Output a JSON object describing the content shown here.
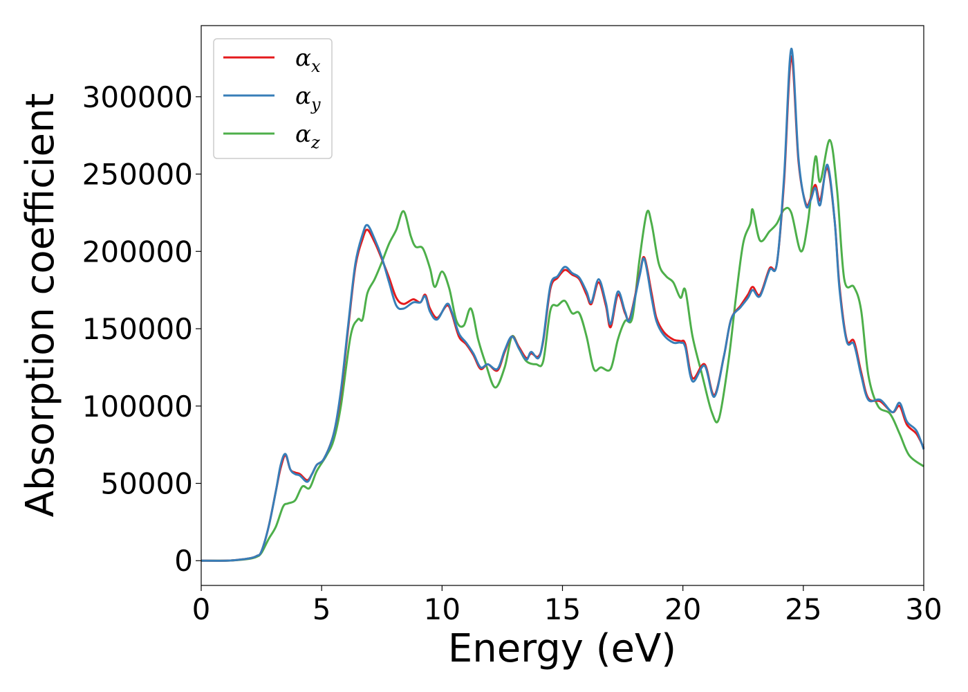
{
  "chart_data": {
    "type": "line",
    "xlabel": "Energy (eV)",
    "ylabel": "Absorption coefficient",
    "xlim": [
      0,
      30
    ],
    "ylim": [
      -16000,
      346000
    ],
    "xticks": [
      0,
      5,
      10,
      15,
      20,
      25,
      30
    ],
    "xtick_labels": [
      "0",
      "5",
      "10",
      "15",
      "20",
      "25",
      "30"
    ],
    "yticks": [
      0,
      50000,
      100000,
      150000,
      200000,
      250000,
      300000
    ],
    "ytick_labels": [
      "0",
      "50000",
      "100000",
      "150000",
      "200000",
      "250000",
      "300000"
    ],
    "grid": false,
    "legend_placement": "upper-left",
    "series": [
      {
        "name": "αx",
        "legend_base": "α",
        "legend_sub": "x",
        "color": "#e41a1c",
        "points": [
          [
            0,
            0
          ],
          [
            1,
            0
          ],
          [
            1.5,
            500
          ],
          [
            2,
            1500
          ],
          [
            2.3,
            3000
          ],
          [
            2.5,
            6000
          ],
          [
            2.8,
            22000
          ],
          [
            3.1,
            45000
          ],
          [
            3.3,
            60000
          ],
          [
            3.5,
            68000
          ],
          [
            3.7,
            59000
          ],
          [
            3.9,
            57000
          ],
          [
            4.1,
            56000
          ],
          [
            4.4,
            52000
          ],
          [
            4.6,
            56000
          ],
          [
            4.8,
            62000
          ],
          [
            5.1,
            66000
          ],
          [
            5.5,
            82000
          ],
          [
            5.8,
            108000
          ],
          [
            6.1,
            150000
          ],
          [
            6.4,
            190000
          ],
          [
            6.7,
            208000
          ],
          [
            6.9,
            214000
          ],
          [
            7.2,
            206000
          ],
          [
            7.5,
            195000
          ],
          [
            7.8,
            183000
          ],
          [
            8.1,
            170000
          ],
          [
            8.4,
            166000
          ],
          [
            8.8,
            169000
          ],
          [
            9.1,
            167000
          ],
          [
            9.3,
            172000
          ],
          [
            9.5,
            163000
          ],
          [
            9.8,
            157000
          ],
          [
            10.2,
            165000
          ],
          [
            10.4,
            160000
          ],
          [
            10.7,
            145000
          ],
          [
            11.0,
            140000
          ],
          [
            11.3,
            133000
          ],
          [
            11.6,
            124000
          ],
          [
            11.9,
            127000
          ],
          [
            12.3,
            123000
          ],
          [
            12.6,
            135000
          ],
          [
            12.9,
            145000
          ],
          [
            13.2,
            138000
          ],
          [
            13.5,
            131000
          ],
          [
            13.7,
            134000
          ],
          [
            14.0,
            132000
          ],
          [
            14.2,
            142000
          ],
          [
            14.5,
            176000
          ],
          [
            14.8,
            183000
          ],
          [
            15.1,
            188000
          ],
          [
            15.4,
            185000
          ],
          [
            15.7,
            182000
          ],
          [
            16.0,
            172000
          ],
          [
            16.2,
            166000
          ],
          [
            16.5,
            180000
          ],
          [
            16.8,
            165000
          ],
          [
            17.0,
            151000
          ],
          [
            17.3,
            172000
          ],
          [
            17.6,
            160000
          ],
          [
            17.8,
            157000
          ],
          [
            18.2,
            185000
          ],
          [
            18.4,
            196000
          ],
          [
            18.7,
            173000
          ],
          [
            18.9,
            157000
          ],
          [
            19.2,
            148000
          ],
          [
            19.6,
            143000
          ],
          [
            19.9,
            142000
          ],
          [
            20.1,
            140000
          ],
          [
            20.4,
            118000
          ],
          [
            20.9,
            127000
          ],
          [
            21.3,
            107000
          ],
          [
            21.7,
            132000
          ],
          [
            22.0,
            156000
          ],
          [
            22.4,
            165000
          ],
          [
            22.7,
            172000
          ],
          [
            22.9,
            177000
          ],
          [
            23.2,
            172000
          ],
          [
            23.6,
            189000
          ],
          [
            23.9,
            192000
          ],
          [
            24.2,
            245000
          ],
          [
            24.5,
            326000
          ],
          [
            24.8,
            258000
          ],
          [
            25.1,
            231000
          ],
          [
            25.3,
            234000
          ],
          [
            25.5,
            243000
          ],
          [
            25.7,
            233000
          ],
          [
            26.0,
            254000
          ],
          [
            26.3,
            220000
          ],
          [
            26.5,
            178000
          ],
          [
            26.8,
            143000
          ],
          [
            27.1,
            142000
          ],
          [
            27.4,
            122000
          ],
          [
            27.7,
            105000
          ],
          [
            28.2,
            103000
          ],
          [
            28.7,
            96000
          ],
          [
            29.0,
            100000
          ],
          [
            29.3,
            88000
          ],
          [
            29.7,
            82000
          ],
          [
            30,
            73000
          ]
        ]
      },
      {
        "name": "αy",
        "legend_base": "α",
        "legend_sub": "y",
        "color": "#377eb8",
        "points": [
          [
            0,
            0
          ],
          [
            1,
            0
          ],
          [
            1.5,
            500
          ],
          [
            2,
            1500
          ],
          [
            2.3,
            3000
          ],
          [
            2.5,
            6000
          ],
          [
            2.8,
            22000
          ],
          [
            3.1,
            45000
          ],
          [
            3.3,
            62000
          ],
          [
            3.5,
            69000
          ],
          [
            3.7,
            59000
          ],
          [
            3.9,
            56000
          ],
          [
            4.1,
            55000
          ],
          [
            4.4,
            51000
          ],
          [
            4.6,
            56000
          ],
          [
            4.8,
            62000
          ],
          [
            5.1,
            66000
          ],
          [
            5.5,
            82000
          ],
          [
            5.8,
            110000
          ],
          [
            6.1,
            152000
          ],
          [
            6.4,
            192000
          ],
          [
            6.7,
            211000
          ],
          [
            6.9,
            217000
          ],
          [
            7.2,
            208000
          ],
          [
            7.5,
            196000
          ],
          [
            7.8,
            180000
          ],
          [
            8.1,
            165000
          ],
          [
            8.4,
            163000
          ],
          [
            8.8,
            167000
          ],
          [
            9.1,
            167000
          ],
          [
            9.3,
            171000
          ],
          [
            9.5,
            161000
          ],
          [
            9.8,
            156000
          ],
          [
            10.2,
            166000
          ],
          [
            10.4,
            161000
          ],
          [
            10.7,
            147000
          ],
          [
            11.0,
            141000
          ],
          [
            11.3,
            134000
          ],
          [
            11.6,
            125000
          ],
          [
            11.9,
            127000
          ],
          [
            12.3,
            124000
          ],
          [
            12.6,
            136000
          ],
          [
            12.9,
            145000
          ],
          [
            13.2,
            137000
          ],
          [
            13.5,
            130000
          ],
          [
            13.7,
            135000
          ],
          [
            14.0,
            131000
          ],
          [
            14.2,
            143000
          ],
          [
            14.5,
            178000
          ],
          [
            14.8,
            184000
          ],
          [
            15.1,
            190000
          ],
          [
            15.4,
            186000
          ],
          [
            15.7,
            183000
          ],
          [
            16.0,
            174000
          ],
          [
            16.2,
            167000
          ],
          [
            16.5,
            182000
          ],
          [
            16.8,
            167000
          ],
          [
            17.0,
            153000
          ],
          [
            17.3,
            174000
          ],
          [
            17.6,
            161000
          ],
          [
            17.8,
            156000
          ],
          [
            18.2,
            184000
          ],
          [
            18.4,
            195000
          ],
          [
            18.7,
            170000
          ],
          [
            18.9,
            155000
          ],
          [
            19.2,
            146000
          ],
          [
            19.6,
            141000
          ],
          [
            19.9,
            141000
          ],
          [
            20.1,
            138000
          ],
          [
            20.4,
            116000
          ],
          [
            20.9,
            126000
          ],
          [
            21.3,
            106000
          ],
          [
            21.7,
            132000
          ],
          [
            22.0,
            156000
          ],
          [
            22.4,
            164000
          ],
          [
            22.7,
            170000
          ],
          [
            22.9,
            175000
          ],
          [
            23.2,
            171000
          ],
          [
            23.6,
            188000
          ],
          [
            23.9,
            192000
          ],
          [
            24.2,
            248000
          ],
          [
            24.5,
            331000
          ],
          [
            24.8,
            260000
          ],
          [
            25.1,
            230000
          ],
          [
            25.3,
            233000
          ],
          [
            25.5,
            241000
          ],
          [
            25.7,
            230000
          ],
          [
            26.0,
            256000
          ],
          [
            26.3,
            220000
          ],
          [
            26.5,
            176000
          ],
          [
            26.8,
            142000
          ],
          [
            27.1,
            140000
          ],
          [
            27.4,
            120000
          ],
          [
            27.7,
            104000
          ],
          [
            28.2,
            104000
          ],
          [
            28.7,
            96000
          ],
          [
            29.0,
            102000
          ],
          [
            29.3,
            90000
          ],
          [
            29.7,
            84000
          ],
          [
            30,
            72000
          ]
        ]
      },
      {
        "name": "αz",
        "legend_base": "α",
        "legend_sub": "z",
        "color": "#4daf4a",
        "points": [
          [
            0,
            0
          ],
          [
            1,
            0
          ],
          [
            1.5,
            400
          ],
          [
            2,
            1200
          ],
          [
            2.3,
            2500
          ],
          [
            2.5,
            5000
          ],
          [
            2.8,
            14000
          ],
          [
            3.1,
            22000
          ],
          [
            3.4,
            35000
          ],
          [
            3.6,
            37000
          ],
          [
            3.9,
            39000
          ],
          [
            4.2,
            48000
          ],
          [
            4.5,
            47000
          ],
          [
            4.8,
            58000
          ],
          [
            5.2,
            68000
          ],
          [
            5.5,
            78000
          ],
          [
            5.8,
            100000
          ],
          [
            6.2,
            145000
          ],
          [
            6.5,
            156000
          ],
          [
            6.7,
            156000
          ],
          [
            6.9,
            173000
          ],
          [
            7.2,
            182000
          ],
          [
            7.5,
            193000
          ],
          [
            7.8,
            205000
          ],
          [
            8.1,
            214000
          ],
          [
            8.4,
            226000
          ],
          [
            8.7,
            210000
          ],
          [
            8.9,
            203000
          ],
          [
            9.2,
            202000
          ],
          [
            9.5,
            189000
          ],
          [
            9.7,
            177000
          ],
          [
            10.0,
            187000
          ],
          [
            10.3,
            176000
          ],
          [
            10.6,
            155000
          ],
          [
            10.9,
            152000
          ],
          [
            11.2,
            163000
          ],
          [
            11.5,
            143000
          ],
          [
            11.8,
            128000
          ],
          [
            12.2,
            112000
          ],
          [
            12.6,
            125000
          ],
          [
            12.9,
            145000
          ],
          [
            13.2,
            137000
          ],
          [
            13.5,
            129000
          ],
          [
            13.9,
            127000
          ],
          [
            14.2,
            129000
          ],
          [
            14.5,
            162000
          ],
          [
            14.8,
            165000
          ],
          [
            15.1,
            168000
          ],
          [
            15.4,
            160000
          ],
          [
            15.7,
            160000
          ],
          [
            16.0,
            145000
          ],
          [
            16.3,
            124000
          ],
          [
            16.6,
            125000
          ],
          [
            17.0,
            124000
          ],
          [
            17.3,
            143000
          ],
          [
            17.6,
            155000
          ],
          [
            17.9,
            157000
          ],
          [
            18.2,
            195000
          ],
          [
            18.5,
            225000
          ],
          [
            18.7,
            218000
          ],
          [
            19.0,
            192000
          ],
          [
            19.3,
            184000
          ],
          [
            19.6,
            180000
          ],
          [
            19.9,
            170000
          ],
          [
            20.1,
            175000
          ],
          [
            20.4,
            145000
          ],
          [
            20.8,
            120000
          ],
          [
            21.2,
            96000
          ],
          [
            21.5,
            92000
          ],
          [
            21.9,
            130000
          ],
          [
            22.2,
            170000
          ],
          [
            22.5,
            205000
          ],
          [
            22.8,
            218000
          ],
          [
            22.9,
            227000
          ],
          [
            23.2,
            207000
          ],
          [
            23.6,
            213000
          ],
          [
            23.9,
            218000
          ],
          [
            24.2,
            227000
          ],
          [
            24.5,
            225000
          ],
          [
            24.9,
            200000
          ],
          [
            25.2,
            220000
          ],
          [
            25.5,
            261000
          ],
          [
            25.7,
            245000
          ],
          [
            26.1,
            272000
          ],
          [
            26.4,
            240000
          ],
          [
            26.7,
            182000
          ],
          [
            27.1,
            177000
          ],
          [
            27.4,
            162000
          ],
          [
            27.7,
            120000
          ],
          [
            28.1,
            100000
          ],
          [
            28.6,
            95000
          ],
          [
            29.0,
            82000
          ],
          [
            29.4,
            68000
          ],
          [
            30,
            61000
          ]
        ]
      }
    ]
  }
}
